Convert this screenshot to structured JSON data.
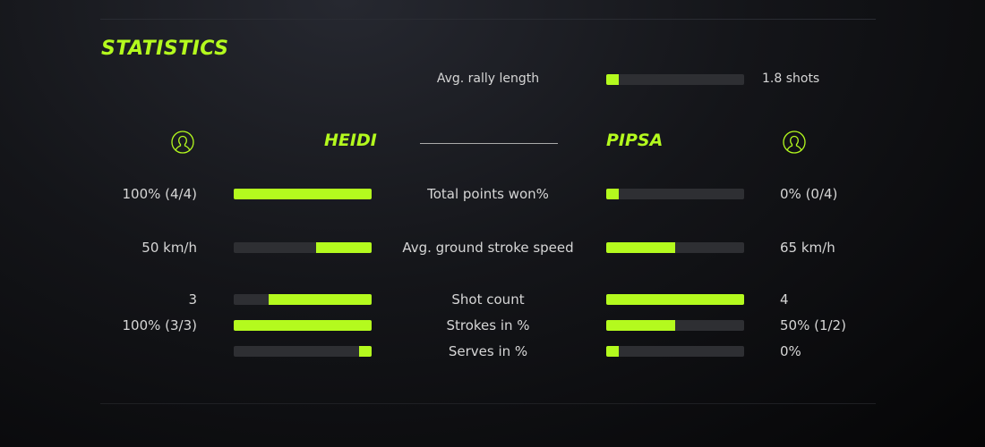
{
  "title": "STATISTICS",
  "accent": "#b4fa1e",
  "rally": {
    "label": "Avg. rally length",
    "value": "1.8 shots",
    "fill": 0.09
  },
  "players": {
    "left": {
      "name": "HEIDI",
      "icon": "user-circle-icon"
    },
    "right": {
      "name": "PIPSA",
      "icon": "user-circle-icon"
    }
  },
  "stats": [
    {
      "label": "Total points won%",
      "left": "100% (4/4)",
      "right": "0% (0/4)",
      "left_fill": 1,
      "right_fill": 0.09
    },
    {
      "label": "Avg. ground stroke speed",
      "left": "50 km/h",
      "right": "65 km/h",
      "left_fill": 0.4,
      "right_fill": 0.5
    },
    {
      "label": "Shot count",
      "left": "3",
      "right": "4",
      "left_fill": 0.75,
      "right_fill": 1
    },
    {
      "label": "Strokes in %",
      "left": "100% (3/3)",
      "right": "50% (1/2)",
      "left_fill": 1,
      "right_fill": 0.5
    },
    {
      "label": "Serves in %",
      "left": "",
      "right": "0%",
      "left_fill": 0.09,
      "right_fill": 0.09
    }
  ]
}
